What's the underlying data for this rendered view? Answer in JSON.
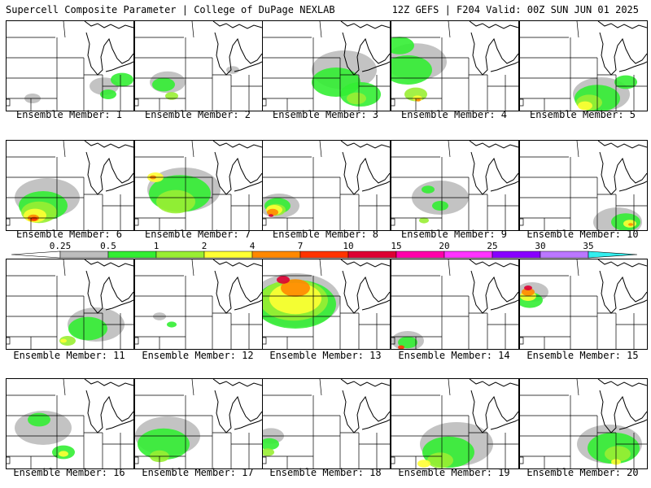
{
  "header": {
    "left": "Supercell Composite Parameter | College of DuPage NEXLAB",
    "right": "12Z GEFS | F204 Valid: 00Z SUN JUN 01 2025"
  },
  "colors": {
    "background": "#ffffff",
    "border": "#000000",
    "state_lines": "#000000",
    "lake_shore": "#000000"
  },
  "legend": {
    "ticks": [
      "0.25",
      "0.5",
      "1",
      "2",
      "4",
      "7",
      "10",
      "15",
      "20",
      "25",
      "30",
      "35"
    ],
    "colors": [
      "#bdbdbd",
      "#33ee33",
      "#99ee33",
      "#ffff33",
      "#ff8800",
      "#ff3300",
      "#dd0033",
      "#ff00aa",
      "#ff33ff",
      "#8800ff",
      "#bb77ff",
      "#33eeee"
    ]
  },
  "members": [
    {
      "label": "Ensemble Member: 1"
    },
    {
      "label": "Ensemble Member: 2"
    },
    {
      "label": "Ensemble Member: 3"
    },
    {
      "label": "Ensemble Member: 4"
    },
    {
      "label": "Ensemble Member: 5"
    },
    {
      "label": "Ensemble Member: 6"
    },
    {
      "label": "Ensemble Member: 7"
    },
    {
      "label": "Ensemble Member: 8"
    },
    {
      "label": "Ensemble Member: 9"
    },
    {
      "label": "Ensemble Member: 10"
    },
    {
      "label": "Ensemble Member: 11"
    },
    {
      "label": "Ensemble Member: 12"
    },
    {
      "label": "Ensemble Member: 13"
    },
    {
      "label": "Ensemble Member: 14"
    },
    {
      "label": "Ensemble Member: 15"
    },
    {
      "label": "Ensemble Member: 16"
    },
    {
      "label": "Ensemble Member: 17"
    },
    {
      "label": "Ensemble Member: 18"
    },
    {
      "label": "Ensemble Member: 19"
    },
    {
      "label": "Ensemble Member: 20"
    }
  ]
}
